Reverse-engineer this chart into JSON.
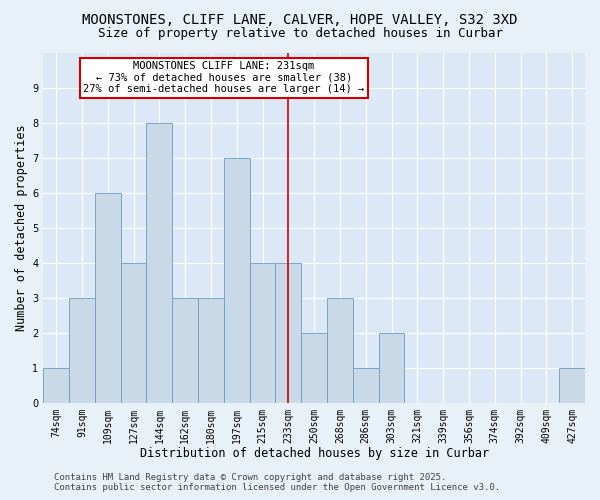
{
  "title1": "MOONSTONES, CLIFF LANE, CALVER, HOPE VALLEY, S32 3XD",
  "title2": "Size of property relative to detached houses in Curbar",
  "xlabel": "Distribution of detached houses by size in Curbar",
  "ylabel": "Number of detached properties",
  "categories": [
    "74sqm",
    "91sqm",
    "109sqm",
    "127sqm",
    "144sqm",
    "162sqm",
    "180sqm",
    "197sqm",
    "215sqm",
    "233sqm",
    "250sqm",
    "268sqm",
    "286sqm",
    "303sqm",
    "321sqm",
    "339sqm",
    "356sqm",
    "374sqm",
    "392sqm",
    "409sqm",
    "427sqm"
  ],
  "values": [
    1,
    3,
    6,
    4,
    8,
    3,
    3,
    7,
    4,
    4,
    2,
    3,
    1,
    2,
    0,
    0,
    0,
    0,
    0,
    0,
    1
  ],
  "bar_color": "#c9d9e8",
  "bar_edge_color": "#6a9dc0",
  "property_line_index": 9,
  "property_line_color": "#cc0000",
  "annotation_text": "MOONSTONES CLIFF LANE: 231sqm\n← 73% of detached houses are smaller (38)\n27% of semi-detached houses are larger (14) →",
  "annotation_box_facecolor": "#ffffff",
  "annotation_box_edgecolor": "#cc0000",
  "ylim": [
    0,
    10
  ],
  "yticks": [
    0,
    1,
    2,
    3,
    4,
    5,
    6,
    7,
    8,
    9,
    10
  ],
  "footer1": "Contains HM Land Registry data © Crown copyright and database right 2025.",
  "footer2": "Contains public sector information licensed under the Open Government Licence v3.0.",
  "fig_facecolor": "#e8f0f8",
  "ax_facecolor": "#dce8f5",
  "grid_color": "#ffffff",
  "title_fontsize": 10,
  "subtitle_fontsize": 9,
  "tick_fontsize": 7,
  "label_fontsize": 8.5,
  "footer_fontsize": 6.5,
  "annot_fontsize": 7.5
}
